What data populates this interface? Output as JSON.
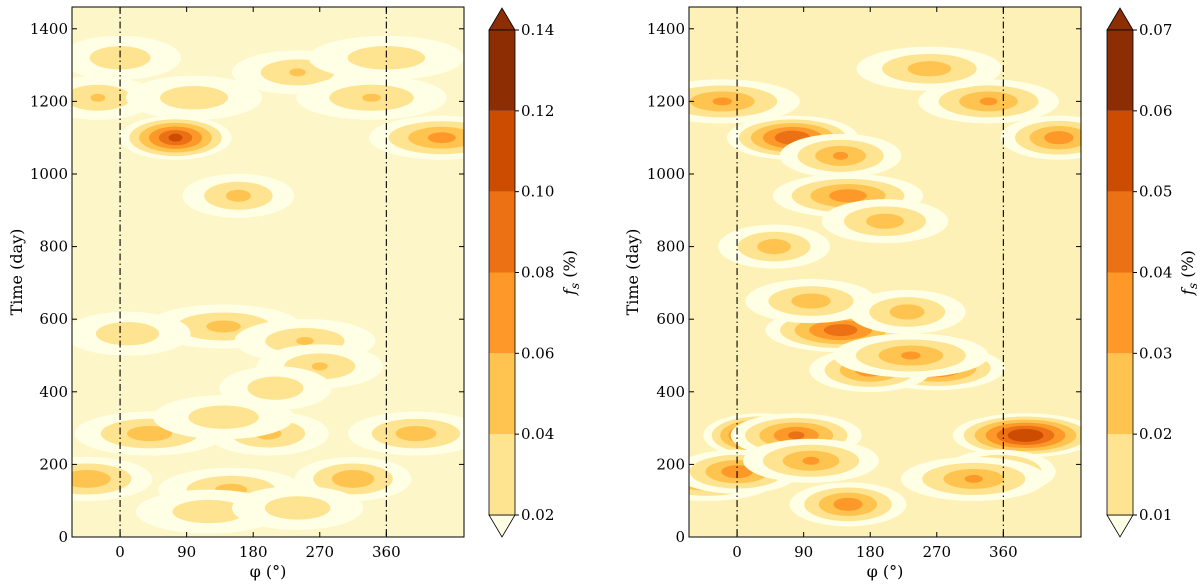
{
  "chart_data": [
    {
      "type": "heatmap",
      "title": "",
      "xlabel": "φ (°)",
      "ylabel": "Time (day)",
      "x_range": [
        -65,
        465
      ],
      "ylim": [
        0,
        1460
      ],
      "x_ticks": [
        0,
        90,
        180,
        270,
        360
      ],
      "x_tick_labels": [
        "0",
        "90",
        "180",
        "270",
        "360"
      ],
      "y_ticks": [
        0,
        200,
        400,
        600,
        800,
        1000,
        1200,
        1400
      ],
      "y_tick_labels": [
        "0",
        "200",
        "400",
        "600",
        "800",
        "1000",
        "1200",
        "1400"
      ],
      "vertical_lines_x": [
        0,
        360
      ],
      "vertical_line_style": "dash-dot",
      "colorbar": {
        "label": "f_s (%)",
        "levels": [
          0.02,
          0.04,
          0.06,
          0.08,
          0.1,
          0.12,
          0.14
        ],
        "tick_labels": [
          "0.02",
          "0.04",
          "0.06",
          "0.08",
          "0.10",
          "0.12",
          "0.14"
        ],
        "colors": [
          "#ffffe5",
          "#fee391",
          "#fec44f",
          "#fe9929",
          "#ec7014",
          "#cc4c02",
          "#8c2d04"
        ],
        "extend": "both"
      },
      "background_level": 0.035,
      "features": [
        {
          "phi": 75,
          "t": 1100,
          "value": 0.12
        },
        {
          "phi": 435,
          "t": 1100,
          "value": 0.085
        },
        {
          "phi": -45,
          "t": 160,
          "value": 0.075
        },
        {
          "phi": 315,
          "t": 160,
          "value": 0.075
        },
        {
          "phi": 40,
          "t": 285,
          "value": 0.07
        },
        {
          "phi": 400,
          "t": 285,
          "value": 0.07
        },
        {
          "phi": 200,
          "t": 285,
          "value": 0.065
        },
        {
          "phi": 140,
          "t": 580,
          "value": 0.065
        },
        {
          "phi": 250,
          "t": 540,
          "value": 0.06
        },
        {
          "phi": 270,
          "t": 470,
          "value": 0.06
        },
        {
          "phi": 160,
          "t": 940,
          "value": 0.065
        },
        {
          "phi": 150,
          "t": 130,
          "value": 0.065
        },
        {
          "phi": 240,
          "t": 1280,
          "value": 0.06
        },
        {
          "phi": -30,
          "t": 1210,
          "value": 0.06
        },
        {
          "phi": 340,
          "t": 1210,
          "value": 0.06
        },
        {
          "phi": 100,
          "t": 1210,
          "value": 0.055
        },
        {
          "phi": 0,
          "t": 1320,
          "value": 0.055
        },
        {
          "phi": 360,
          "t": 1320,
          "value": 0.055
        },
        {
          "phi": 140,
          "t": 330,
          "value": 0.055
        },
        {
          "phi": 10,
          "t": 560,
          "value": 0.055
        },
        {
          "phi": 210,
          "t": 410,
          "value": 0.055
        },
        {
          "phi": 120,
          "t": 70,
          "value": 0.055
        },
        {
          "phi": 240,
          "t": 80,
          "value": 0.055
        }
      ]
    },
    {
      "type": "heatmap",
      "title": "",
      "xlabel": "φ (°)",
      "ylabel": "Time (day)",
      "x_range": [
        -65,
        465
      ],
      "ylim": [
        0,
        1460
      ],
      "x_ticks": [
        0,
        90,
        180,
        270,
        360
      ],
      "x_tick_labels": [
        "0",
        "90",
        "180",
        "270",
        "360"
      ],
      "y_ticks": [
        0,
        200,
        400,
        600,
        800,
        1000,
        1200,
        1400
      ],
      "y_tick_labels": [
        "0",
        "200",
        "400",
        "600",
        "800",
        "1000",
        "1200",
        "1400"
      ],
      "vertical_lines_x": [
        0,
        360
      ],
      "vertical_line_style": "dash-dot",
      "colorbar": {
        "label": "f_s (%)",
        "levels": [
          0.01,
          0.02,
          0.03,
          0.04,
          0.05,
          0.06,
          0.07
        ],
        "tick_labels": [
          "0.01",
          "0.02",
          "0.03",
          "0.04",
          "0.05",
          "0.06",
          "0.07"
        ],
        "colors": [
          "#ffffe5",
          "#fee391",
          "#fec44f",
          "#fe9929",
          "#ec7014",
          "#cc4c02",
          "#8c2d04"
        ],
        "extend": "both"
      },
      "background_level": 0.019,
      "features": [
        {
          "phi": 30,
          "t": 280,
          "value": 0.068
        },
        {
          "phi": 390,
          "t": 280,
          "value": 0.068
        },
        {
          "phi": 75,
          "t": 1100,
          "value": 0.058
        },
        {
          "phi": 435,
          "t": 1100,
          "value": 0.045
        },
        {
          "phi": 140,
          "t": 570,
          "value": 0.055
        },
        {
          "phi": 270,
          "t": 465,
          "value": 0.052
        },
        {
          "phi": 180,
          "t": 460,
          "value": 0.045
        },
        {
          "phi": 235,
          "t": 500,
          "value": 0.04
        },
        {
          "phi": -40,
          "t": 160,
          "value": 0.045
        },
        {
          "phi": 0,
          "t": 180,
          "value": 0.045
        },
        {
          "phi": 355,
          "t": 180,
          "value": 0.045
        },
        {
          "phi": 320,
          "t": 160,
          "value": 0.04
        },
        {
          "phi": 80,
          "t": 280,
          "value": 0.05
        },
        {
          "phi": 150,
          "t": 90,
          "value": 0.045
        },
        {
          "phi": 150,
          "t": 940,
          "value": 0.045
        },
        {
          "phi": 100,
          "t": 210,
          "value": 0.04
        },
        {
          "phi": 140,
          "t": 1050,
          "value": 0.04
        },
        {
          "phi": -20,
          "t": 1200,
          "value": 0.04
        },
        {
          "phi": 340,
          "t": 1200,
          "value": 0.04
        },
        {
          "phi": 200,
          "t": 870,
          "value": 0.035
        },
        {
          "phi": 50,
          "t": 800,
          "value": 0.035
        },
        {
          "phi": 260,
          "t": 1290,
          "value": 0.035
        },
        {
          "phi": 100,
          "t": 650,
          "value": 0.035
        },
        {
          "phi": 230,
          "t": 620,
          "value": 0.035
        }
      ]
    }
  ]
}
